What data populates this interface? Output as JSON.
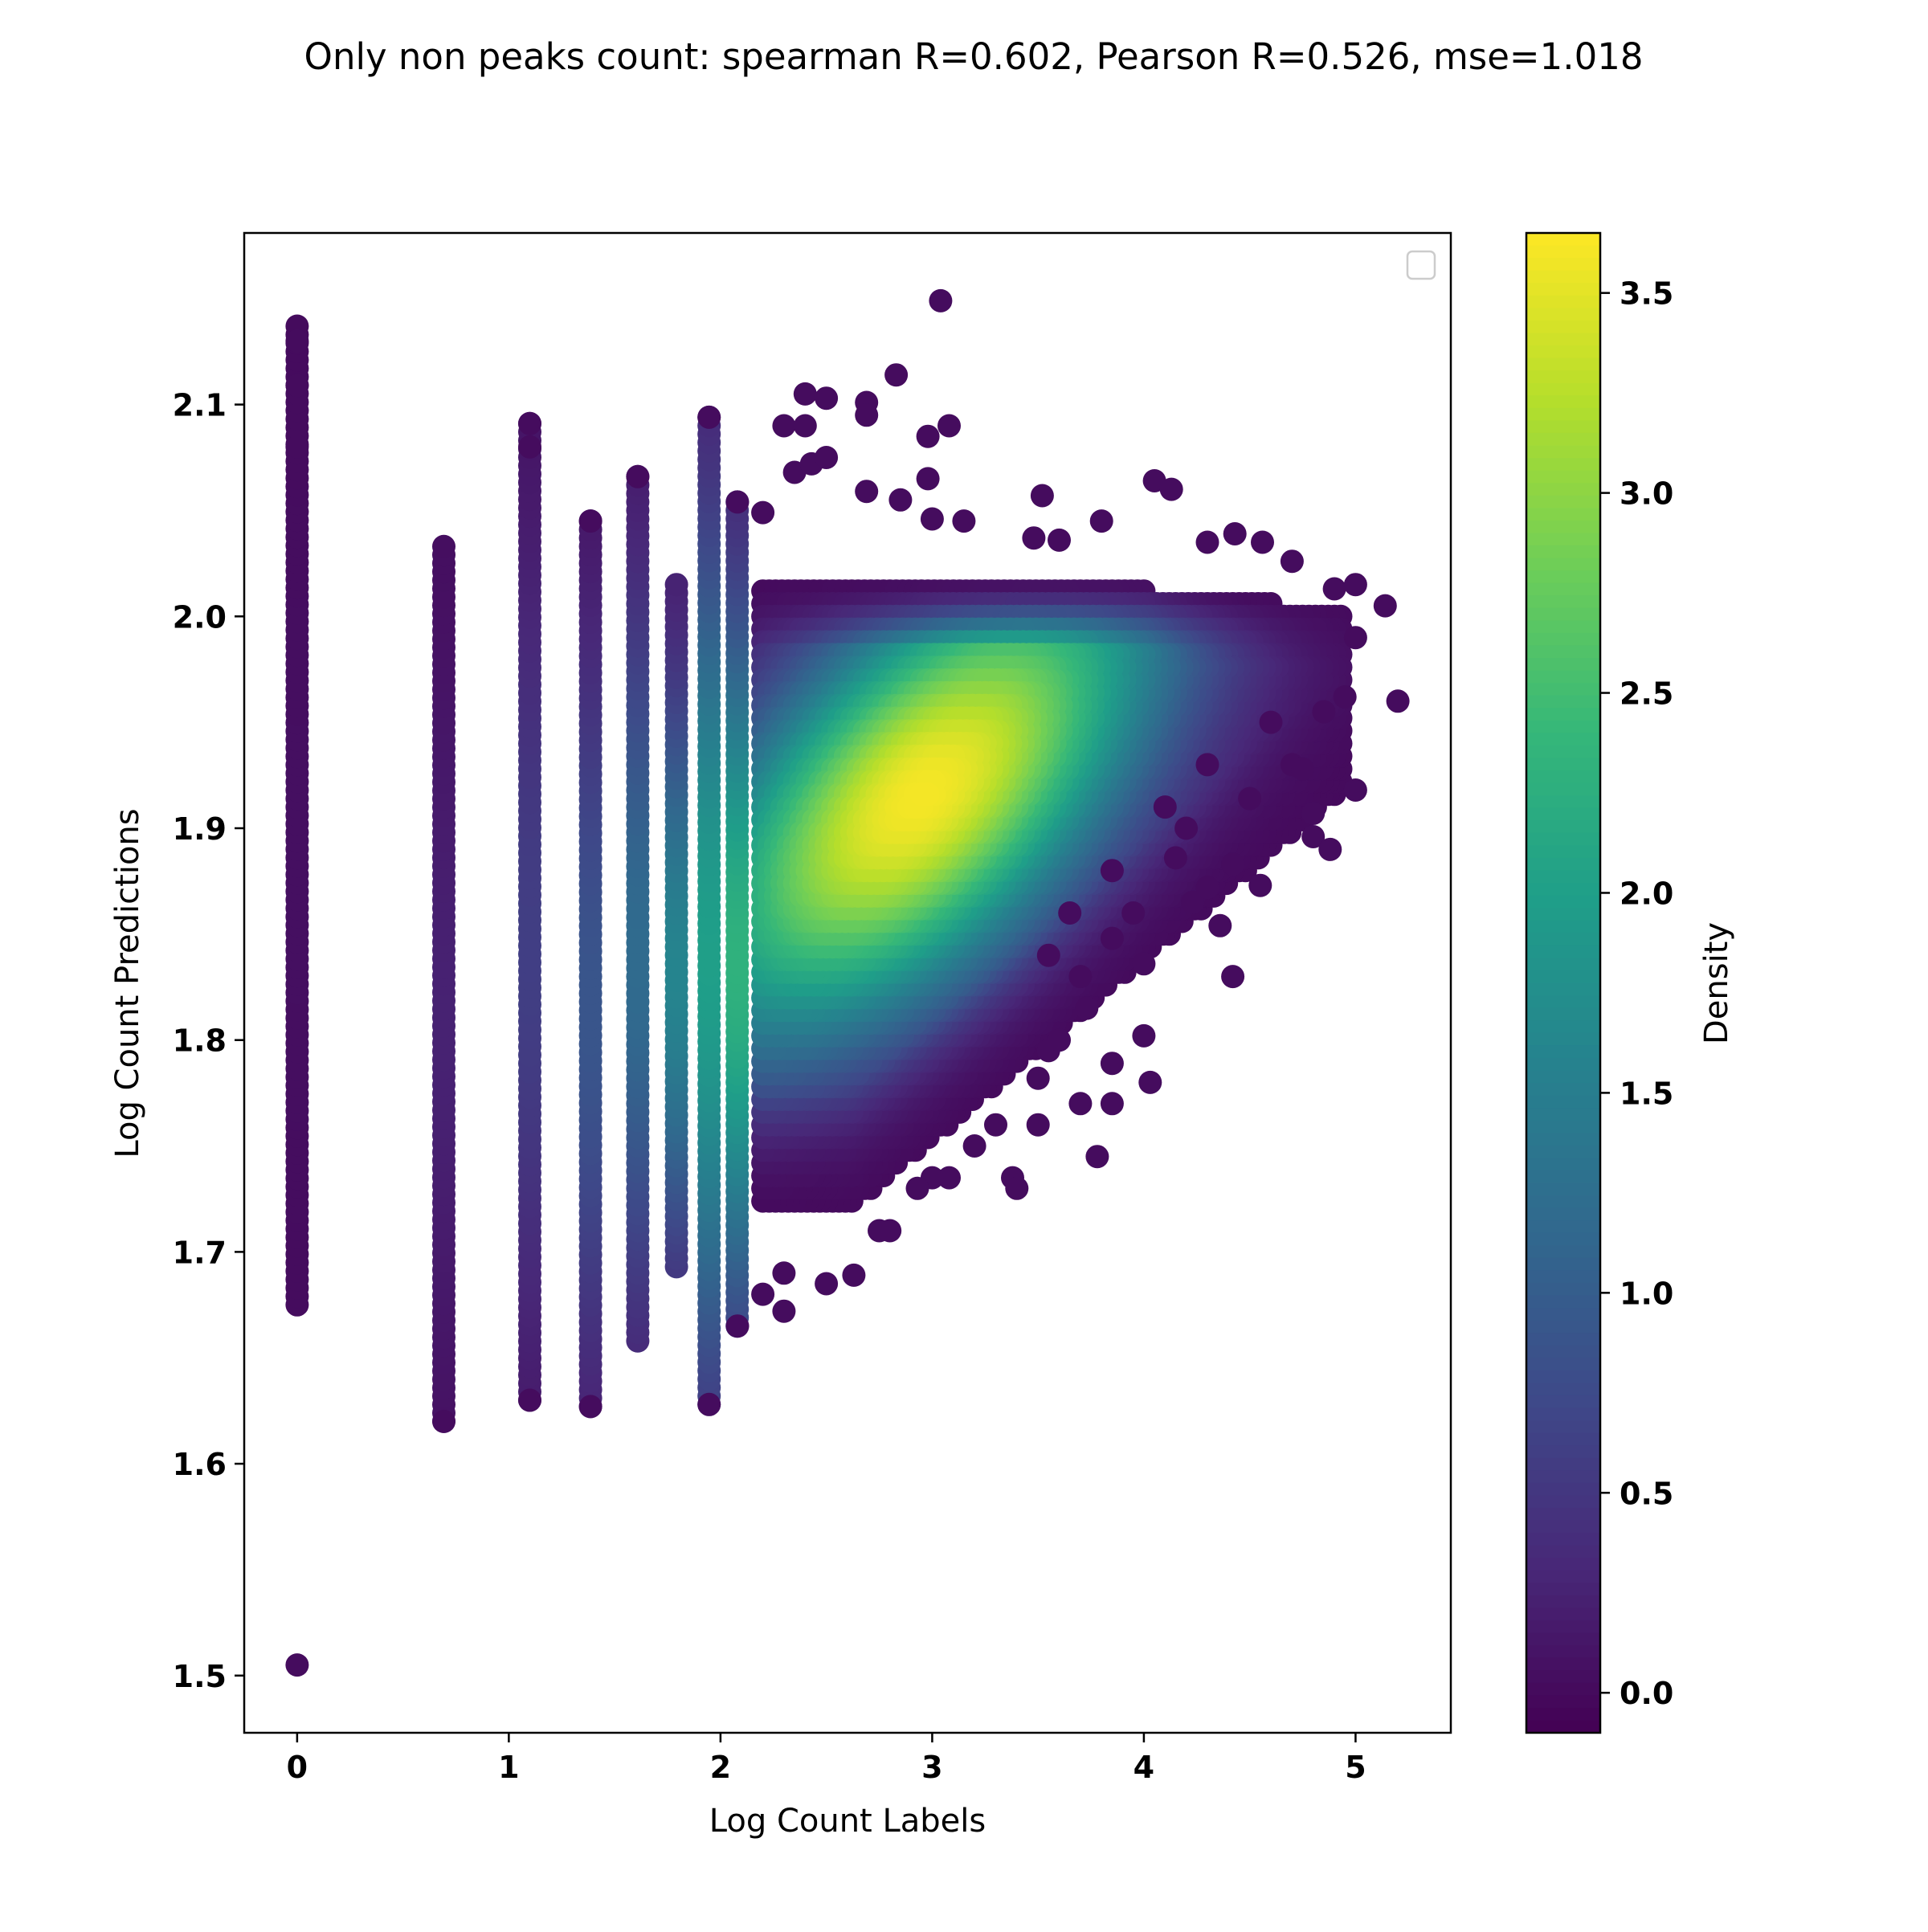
{
  "chart_data": {
    "type": "scatter",
    "title": "Only non peaks count: spearman R=0.602, Pearson R=0.526, mse=1.018",
    "xlabel": "Log Count Labels",
    "ylabel": "Log Count Predictions",
    "xlim": [
      -0.25,
      5.45
    ],
    "ylim": [
      1.473,
      2.181
    ],
    "x_ticks": [
      0,
      1,
      2,
      3,
      4,
      5
    ],
    "x_tick_labels": [
      "0",
      "1",
      "2",
      "3",
      "4",
      "5"
    ],
    "y_ticks": [
      1.5,
      1.6,
      1.7,
      1.8,
      1.9,
      2.0,
      2.1
    ],
    "y_tick_labels": [
      "1.5",
      "1.6",
      "1.7",
      "1.8",
      "1.9",
      "2.0",
      "2.1"
    ],
    "grid": false,
    "legend": {
      "placement": "top-right",
      "entries": []
    },
    "colorbar": {
      "label": "Density",
      "colormap": "viridis",
      "range": [
        -0.1,
        3.65
      ],
      "ticks": [
        0.0,
        0.5,
        1.0,
        1.5,
        2.0,
        2.5,
        3.0,
        3.5
      ],
      "tick_labels": [
        "0.0",
        "0.5",
        "1.0",
        "1.5",
        "2.0",
        "2.5",
        "3.0",
        "3.5"
      ]
    },
    "columns": [
      {
        "x": 0.0,
        "y_min": 1.675,
        "y_max": 2.137,
        "density": 0.05
      },
      {
        "x": 0.693,
        "y_min": 1.62,
        "y_max": 2.033,
        "density": 0.25
      },
      {
        "x": 1.099,
        "y_min": 1.63,
        "y_max": 2.091,
        "density": 0.6
      },
      {
        "x": 1.386,
        "y_min": 1.627,
        "y_max": 2.045,
        "density": 0.9
      },
      {
        "x": 1.609,
        "y_min": 1.658,
        "y_max": 2.066,
        "density": 1.2
      },
      {
        "x": 1.792,
        "y_min": 1.693,
        "y_max": 2.015,
        "density": 1.6
      },
      {
        "x": 1.946,
        "y_min": 1.628,
        "y_max": 2.094,
        "density": 2.0
      },
      {
        "x": 2.079,
        "y_min": 1.665,
        "y_max": 2.054,
        "density": 2.3
      }
    ],
    "density_peak": {
      "x": 2.95,
      "y": 1.95,
      "density": 3.6
    },
    "outliers": [
      {
        "x": 0.0,
        "y": 1.505
      },
      {
        "x": 0.0,
        "y": 2.13
      },
      {
        "x": 0.0,
        "y": 2.109
      },
      {
        "x": 0.0,
        "y": 2.08
      },
      {
        "x": 0.693,
        "y": 1.62
      },
      {
        "x": 1.099,
        "y": 2.091
      },
      {
        "x": 1.099,
        "y": 2.08
      },
      {
        "x": 1.099,
        "y": 1.63
      },
      {
        "x": 1.386,
        "y": 1.627
      },
      {
        "x": 1.386,
        "y": 2.045
      },
      {
        "x": 1.609,
        "y": 2.066
      },
      {
        "x": 1.946,
        "y": 2.094
      },
      {
        "x": 1.946,
        "y": 1.628
      },
      {
        "x": 2.08,
        "y": 2.054
      },
      {
        "x": 2.2,
        "y": 2.049
      },
      {
        "x": 2.3,
        "y": 2.09
      },
      {
        "x": 2.4,
        "y": 2.105
      },
      {
        "x": 2.5,
        "y": 2.103
      },
      {
        "x": 2.4,
        "y": 2.09
      },
      {
        "x": 2.35,
        "y": 2.068
      },
      {
        "x": 2.43,
        "y": 2.072
      },
      {
        "x": 2.5,
        "y": 2.075
      },
      {
        "x": 2.69,
        "y": 2.101
      },
      {
        "x": 2.69,
        "y": 2.095
      },
      {
        "x": 2.69,
        "y": 2.059
      },
      {
        "x": 2.83,
        "y": 2.114
      },
      {
        "x": 3.04,
        "y": 2.149
      },
      {
        "x": 2.98,
        "y": 2.085
      },
      {
        "x": 3.08,
        "y": 2.09
      },
      {
        "x": 2.98,
        "y": 2.065
      },
      {
        "x": 2.85,
        "y": 2.055
      },
      {
        "x": 3.52,
        "y": 2.057
      },
      {
        "x": 4.05,
        "y": 2.064
      },
      {
        "x": 4.13,
        "y": 2.06
      },
      {
        "x": 3.8,
        "y": 2.045
      },
      {
        "x": 4.43,
        "y": 2.039
      },
      {
        "x": 4.56,
        "y": 2.035
      },
      {
        "x": 4.7,
        "y": 2.026
      },
      {
        "x": 4.9,
        "y": 2.013
      },
      {
        "x": 5.0,
        "y": 2.015
      },
      {
        "x": 5.14,
        "y": 2.005
      },
      {
        "x": 5.0,
        "y": 1.99
      },
      {
        "x": 5.2,
        "y": 1.96
      },
      {
        "x": 4.95,
        "y": 1.962
      },
      {
        "x": 5.0,
        "y": 1.918
      },
      {
        "x": 4.8,
        "y": 1.907
      },
      {
        "x": 4.8,
        "y": 1.896
      },
      {
        "x": 4.88,
        "y": 1.89
      },
      {
        "x": 4.55,
        "y": 1.873
      },
      {
        "x": 4.5,
        "y": 1.914
      },
      {
        "x": 4.42,
        "y": 1.883
      },
      {
        "x": 4.36,
        "y": 1.854
      },
      {
        "x": 4.42,
        "y": 1.83
      },
      {
        "x": 4.23,
        "y": 1.865
      },
      {
        "x": 4.0,
        "y": 1.836
      },
      {
        "x": 4.0,
        "y": 1.802
      },
      {
        "x": 4.03,
        "y": 1.78
      },
      {
        "x": 3.85,
        "y": 1.789
      },
      {
        "x": 3.85,
        "y": 1.77
      },
      {
        "x": 3.78,
        "y": 1.745
      },
      {
        "x": 3.73,
        "y": 1.815
      },
      {
        "x": 3.55,
        "y": 1.795
      },
      {
        "x": 3.5,
        "y": 1.782
      },
      {
        "x": 3.5,
        "y": 1.76
      },
      {
        "x": 3.38,
        "y": 1.735
      },
      {
        "x": 3.4,
        "y": 1.73
      },
      {
        "x": 3.08,
        "y": 1.735
      },
      {
        "x": 3.0,
        "y": 1.735
      },
      {
        "x": 2.93,
        "y": 1.73
      },
      {
        "x": 2.8,
        "y": 1.71
      },
      {
        "x": 2.75,
        "y": 1.71
      },
      {
        "x": 2.63,
        "y": 1.689
      },
      {
        "x": 2.5,
        "y": 1.685
      },
      {
        "x": 2.3,
        "y": 1.672
      },
      {
        "x": 2.3,
        "y": 1.69
      },
      {
        "x": 2.2,
        "y": 1.68
      },
      {
        "x": 2.08,
        "y": 1.665
      },
      {
        "x": 3.0,
        "y": 2.046
      },
      {
        "x": 3.15,
        "y": 2.045
      },
      {
        "x": 3.6,
        "y": 2.036
      },
      {
        "x": 3.48,
        "y": 2.037
      },
      {
        "x": 4.3,
        "y": 2.035
      },
      {
        "x": 4.6,
        "y": 1.95
      },
      {
        "x": 4.7,
        "y": 1.93
      },
      {
        "x": 4.75,
        "y": 1.928
      },
      {
        "x": 4.85,
        "y": 1.955
      },
      {
        "x": 4.3,
        "y": 1.93
      },
      {
        "x": 4.2,
        "y": 1.9
      },
      {
        "x": 4.1,
        "y": 1.91
      },
      {
        "x": 4.15,
        "y": 1.886
      },
      {
        "x": 4.3,
        "y": 1.872
      },
      {
        "x": 3.85,
        "y": 1.88
      },
      {
        "x": 3.95,
        "y": 1.86
      },
      {
        "x": 3.65,
        "y": 1.86
      },
      {
        "x": 3.7,
        "y": 1.83
      },
      {
        "x": 3.85,
        "y": 1.848
      },
      {
        "x": 3.7,
        "y": 1.77
      },
      {
        "x": 3.6,
        "y": 1.8
      },
      {
        "x": 3.3,
        "y": 1.76
      },
      {
        "x": 3.2,
        "y": 1.75
      },
      {
        "x": 3.55,
        "y": 1.84
      }
    ]
  }
}
